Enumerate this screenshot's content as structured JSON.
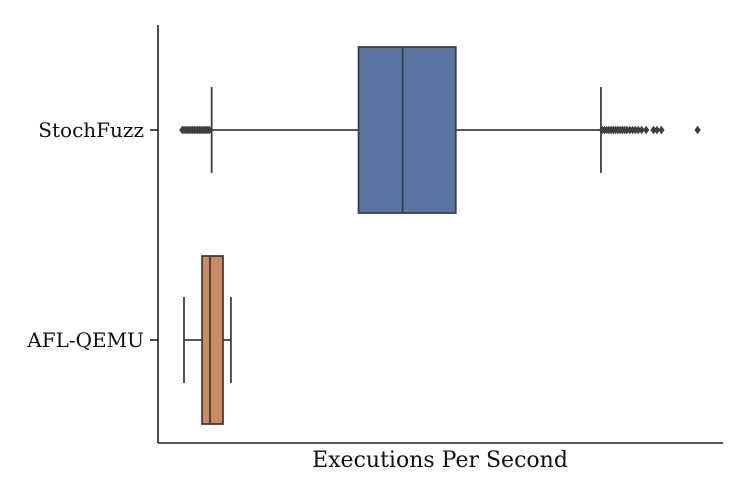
{
  "chart_data": {
    "type": "boxplot",
    "orientation": "horizontal",
    "title": "",
    "xlabel": "Executions Per Second",
    "ylabel": "",
    "x_tick_labels_shown": false,
    "xlim": [
      0,
      100
    ],
    "grid": false,
    "categories": [
      "StochFuzz",
      "AFL-QEMU"
    ],
    "boxes": [
      {
        "name": "StochFuzz",
        "color": "#5975a4",
        "whisker_low": 9.5,
        "q1": 35.5,
        "median": 43.3,
        "q3": 52.7,
        "whisker_high": 78.4,
        "outliers_low": [
          4.3,
          4.6,
          4.9,
          5.2,
          5.5,
          5.8,
          6.1,
          6.4,
          6.7,
          7.0,
          7.3,
          7.6,
          7.9,
          8.2,
          8.5,
          8.8,
          9.1
        ],
        "outliers_high": [
          78.6,
          79.0,
          79.4,
          79.8,
          80.2,
          80.6,
          81.0,
          81.4,
          81.8,
          82.2,
          82.6,
          83.0,
          83.5,
          84.0,
          84.5,
          85.0,
          85.6,
          86.4,
          87.7,
          88.3,
          89.1,
          95.5
        ]
      },
      {
        "name": "AFL-QEMU",
        "color": "#cc8963",
        "whisker_low": 4.6,
        "q1": 7.8,
        "median": 9.2,
        "q3": 11.5,
        "whisker_high": 12.9,
        "outliers_low": [],
        "outliers_high": []
      }
    ]
  }
}
